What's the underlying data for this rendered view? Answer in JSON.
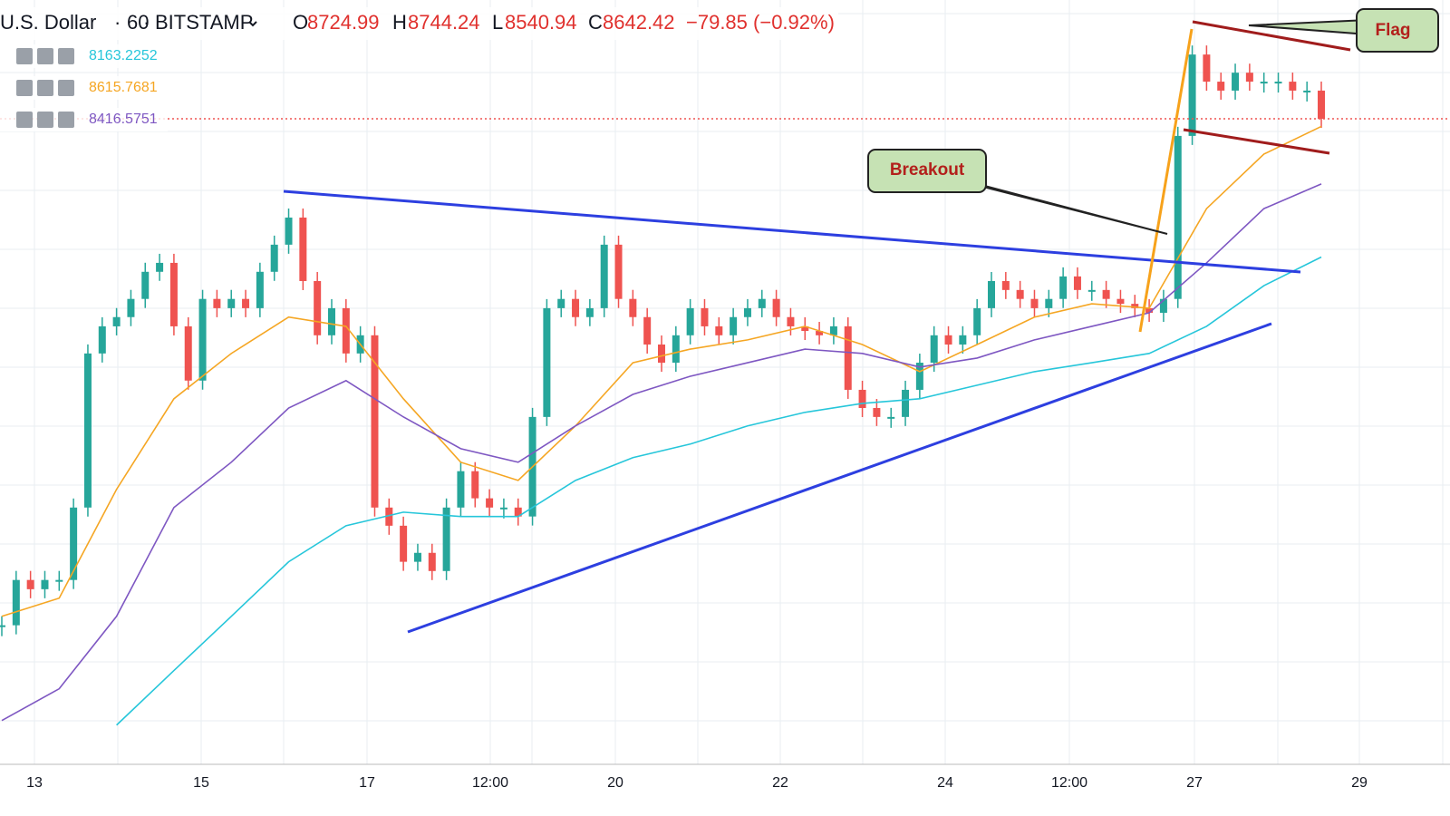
{
  "header": {
    "symbol": "U.S. Dollar",
    "interval": "60",
    "exchange": "BITSTAMP",
    "open_label": "O",
    "open": "8724.99",
    "high_label": "H",
    "high": "8744.24",
    "low_label": "L",
    "low": "8540.94",
    "close_label": "C",
    "change": "−79.85 (−0.92%)"
  },
  "annotations": {
    "breakout": "Breakout",
    "flag": "Flag"
  },
  "chart_data": {
    "type": "candlestick",
    "x_axis_labels": [
      "13",
      "15",
      "17",
      "12:00",
      "20",
      "22",
      "24",
      "12:00",
      "27",
      "29"
    ],
    "ylim": [
      6226,
      9054
    ],
    "up_color": "#26a69a",
    "down_color": "#ef5350",
    "grid": true,
    "series": [
      {
        "values": [
          6887,
          7044,
          7012,
          7044,
          7044,
          7295,
          7829,
          7923,
          7955,
          8018,
          8112,
          8143,
          7923,
          7735,
          8018,
          7986,
          8018,
          7986,
          8112,
          8206,
          8300,
          8080,
          7892,
          7986,
          7829,
          7892,
          7295,
          7232,
          7107,
          7138,
          7075,
          7295,
          7421,
          7327,
          7295,
          7295,
          7264,
          7609,
          7986,
          8018,
          7955,
          7986,
          8206,
          8018,
          7955,
          7860,
          7797,
          7892,
          7986,
          7923,
          7892,
          7955,
          7986,
          8018,
          7955,
          7923,
          7907,
          7892,
          7923,
          7703,
          7640,
          7609,
          7609,
          7703,
          7797,
          7892,
          7860,
          7892,
          7986,
          8080,
          8049,
          8018,
          7986,
          8018,
          8096,
          8049,
          8049,
          8018,
          8001,
          7986,
          7970,
          8018,
          8583,
          8865,
          8771,
          8740,
          8802,
          8771,
          8771,
          8771,
          8740,
          8740,
          8642.42
        ]
      },
      {
        "color": "#26c6da",
        "values": [
          null,
          null,
          6541,
          6730,
          6918,
          7107,
          7232,
          7279,
          7264,
          7264,
          7389,
          7468,
          7515,
          7578,
          7625,
          7656,
          7672,
          7719,
          7766,
          7797,
          7829,
          7923,
          8064,
          8163.2252
        ]
      },
      {
        "color": "#f5a623",
        "values": [
          6918,
          6981,
          7358,
          7672,
          7829,
          7955,
          7923,
          7672,
          7452,
          7389,
          7578,
          7797,
          7844,
          7876,
          7923,
          7860,
          7766,
          7860,
          7955,
          8001,
          7986,
          8331,
          8520,
          8615.7681
        ]
      },
      {
        "color": "#7e57c2",
        "values": [
          6557,
          6667,
          6918,
          7295,
          7452,
          7640,
          7735,
          7609,
          7499,
          7452,
          7578,
          7687,
          7750,
          7797,
          7844,
          7829,
          7782,
          7813,
          7876,
          7923,
          7970,
          8143,
          8331,
          8416.5751
        ]
      }
    ]
  }
}
